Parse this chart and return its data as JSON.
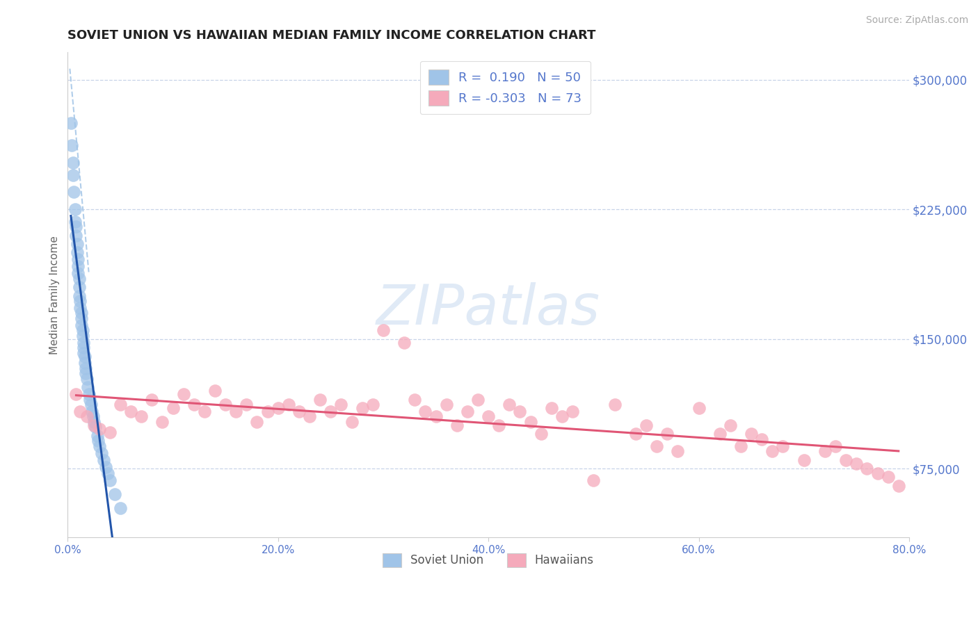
{
  "title": "SOVIET UNION VS HAWAIIAN MEDIAN FAMILY INCOME CORRELATION CHART",
  "source": "Source: ZipAtlas.com",
  "ylabel": "Median Family Income",
  "yticks": [
    75000,
    150000,
    225000,
    300000
  ],
  "ytick_labels": [
    "$75,000",
    "$150,000",
    "$225,000",
    "$300,000"
  ],
  "xtick_vals": [
    0,
    20,
    40,
    60,
    80
  ],
  "xtick_labels": [
    "0.0%",
    "20.0%",
    "40.0%",
    "60.0%",
    "80.0%"
  ],
  "xmin": 0.0,
  "xmax": 80.0,
  "ymin": 35000,
  "ymax": 316000,
  "blue_R": 0.19,
  "blue_N": 50,
  "pink_R": -0.303,
  "pink_N": 73,
  "blue_label": "Soviet Union",
  "pink_label": "Hawaiians",
  "blue_scatter_color": "#a0c4e8",
  "pink_scatter_color": "#f5aabb",
  "blue_line_color": "#2255aa",
  "pink_line_color": "#e05575",
  "blue_dashed_color": "#a8c8e8",
  "axis_label_color": "#5577cc",
  "title_color": "#222222",
  "background_color": "#ffffff",
  "grid_color": "#c8d4e8",
  "watermark_text": "ZIPatlas",
  "watermark_color": "#ccddf0",
  "source_color": "#aaaaaa",
  "soviet_x": [
    0.3,
    0.4,
    0.5,
    0.5,
    0.6,
    0.7,
    0.7,
    0.8,
    0.8,
    0.9,
    0.9,
    1.0,
    1.0,
    1.0,
    1.1,
    1.1,
    1.1,
    1.2,
    1.2,
    1.3,
    1.3,
    1.3,
    1.4,
    1.4,
    1.5,
    1.5,
    1.5,
    1.6,
    1.6,
    1.7,
    1.7,
    1.8,
    1.9,
    2.0,
    2.1,
    2.2,
    2.3,
    2.4,
    2.5,
    2.6,
    2.8,
    2.9,
    3.0,
    3.2,
    3.4,
    3.6,
    3.8,
    4.0,
    4.5,
    5.0
  ],
  "soviet_y": [
    275000,
    262000,
    252000,
    245000,
    235000,
    225000,
    218000,
    215000,
    210000,
    205000,
    200000,
    196000,
    192000,
    188000,
    185000,
    180000,
    175000,
    172000,
    168000,
    165000,
    162000,
    158000,
    155000,
    152000,
    148000,
    145000,
    142000,
    140000,
    136000,
    133000,
    130000,
    127000,
    122000,
    118000,
    115000,
    112000,
    108000,
    105000,
    102000,
    99000,
    94000,
    91000,
    88000,
    84000,
    80000,
    76000,
    72000,
    68000,
    60000,
    52000
  ],
  "hawaiian_x": [
    0.8,
    1.2,
    1.8,
    2.5,
    3.0,
    4.0,
    5.0,
    6.0,
    7.0,
    8.0,
    9.0,
    10.0,
    11.0,
    12.0,
    13.0,
    14.0,
    15.0,
    16.0,
    17.0,
    18.0,
    19.0,
    20.0,
    21.0,
    22.0,
    23.0,
    24.0,
    25.0,
    26.0,
    27.0,
    28.0,
    29.0,
    30.0,
    32.0,
    33.0,
    34.0,
    35.0,
    36.0,
    37.0,
    38.0,
    39.0,
    40.0,
    41.0,
    42.0,
    43.0,
    44.0,
    45.0,
    46.0,
    47.0,
    48.0,
    50.0,
    52.0,
    54.0,
    55.0,
    56.0,
    57.0,
    58.0,
    60.0,
    62.0,
    63.0,
    64.0,
    65.0,
    66.0,
    67.0,
    68.0,
    70.0,
    72.0,
    73.0,
    74.0,
    75.0,
    76.0,
    77.0,
    78.0,
    79.0
  ],
  "hawaiian_y": [
    118000,
    108000,
    105000,
    100000,
    98000,
    96000,
    112000,
    108000,
    105000,
    115000,
    102000,
    110000,
    118000,
    112000,
    108000,
    120000,
    112000,
    108000,
    112000,
    102000,
    108000,
    110000,
    112000,
    108000,
    105000,
    115000,
    108000,
    112000,
    102000,
    110000,
    112000,
    155000,
    148000,
    115000,
    108000,
    105000,
    112000,
    100000,
    108000,
    115000,
    105000,
    100000,
    112000,
    108000,
    102000,
    95000,
    110000,
    105000,
    108000,
    68000,
    112000,
    95000,
    100000,
    88000,
    95000,
    85000,
    110000,
    95000,
    100000,
    88000,
    95000,
    92000,
    85000,
    88000,
    80000,
    85000,
    88000,
    80000,
    78000,
    75000,
    72000,
    70000,
    65000
  ]
}
